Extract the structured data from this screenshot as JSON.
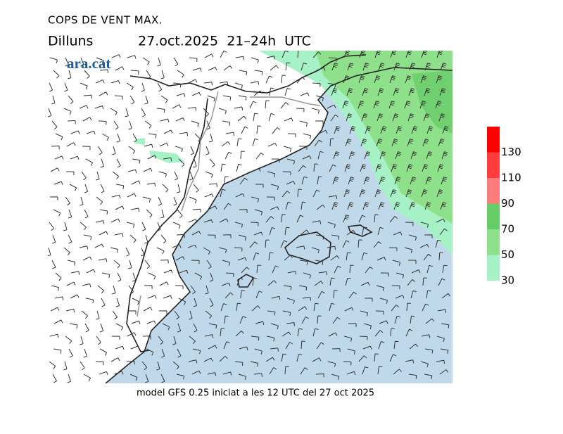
{
  "header": {
    "title": "COPS DE VENT MAX.",
    "day": "Dilluns",
    "period": "27.oct.2025  21–24h  UTC"
  },
  "logo": "ara.cat",
  "legend": {
    "ticks": [
      30,
      50,
      70,
      90,
      110,
      130
    ],
    "colors": [
      "#a6f2c6",
      "#8fe08a",
      "#66cc66",
      "#ff7a7a",
      "#ff3d3d",
      "#ff0000"
    ]
  },
  "footer": "model GFS 0.25 iniciat a les 12 UTC del 27 oct 2025"
}
